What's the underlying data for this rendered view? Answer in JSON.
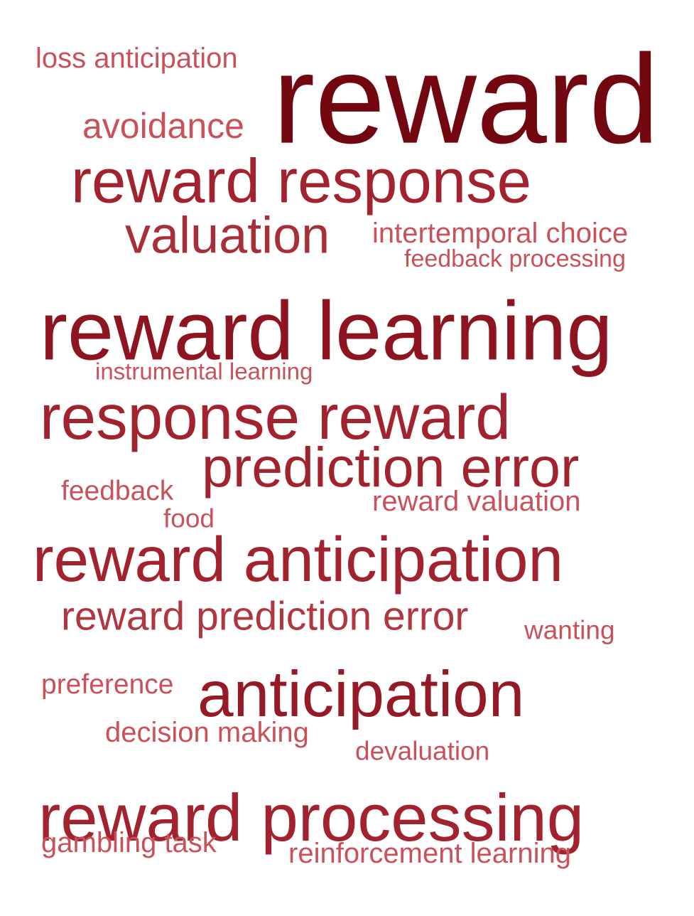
{
  "words": [
    {
      "text": "loss anticipation",
      "color": "#c9525a"
    },
    {
      "text": "reward",
      "color": "#720710"
    },
    {
      "text": "avoidance",
      "color": "#c9525a"
    },
    {
      "text": "reward response",
      "color": "#a2232e"
    },
    {
      "text": "valuation",
      "color": "#a82e38"
    },
    {
      "text": "intertemporal choice",
      "color": "#c9525a"
    },
    {
      "text": "feedback processing",
      "color": "#c9525a"
    },
    {
      "text": "reward learning",
      "color": "#8e1520"
    },
    {
      "text": "instrumental learning",
      "color": "#c9525a"
    },
    {
      "text": "response reward",
      "color": "#a2232e"
    },
    {
      "text": "prediction error",
      "color": "#a2232e"
    },
    {
      "text": "feedback",
      "color": "#c9525a"
    },
    {
      "text": "reward valuation",
      "color": "#c9525a"
    },
    {
      "text": "food",
      "color": "#c9525a"
    },
    {
      "text": "reward anticipation",
      "color": "#a2232e"
    },
    {
      "text": "reward prediction error",
      "color": "#b03640"
    },
    {
      "text": "wanting",
      "color": "#c9525a"
    },
    {
      "text": "preference",
      "color": "#c9525a"
    },
    {
      "text": "anticipation",
      "color": "#961a25"
    },
    {
      "text": "decision making",
      "color": "#c9525a"
    },
    {
      "text": "devaluation",
      "color": "#c9525a"
    },
    {
      "text": "reward processing",
      "color": "#a2232e"
    },
    {
      "text": "gambling task",
      "color": "#c9525a"
    },
    {
      "text": "reinforcement learning",
      "color": "#c9525a"
    }
  ]
}
